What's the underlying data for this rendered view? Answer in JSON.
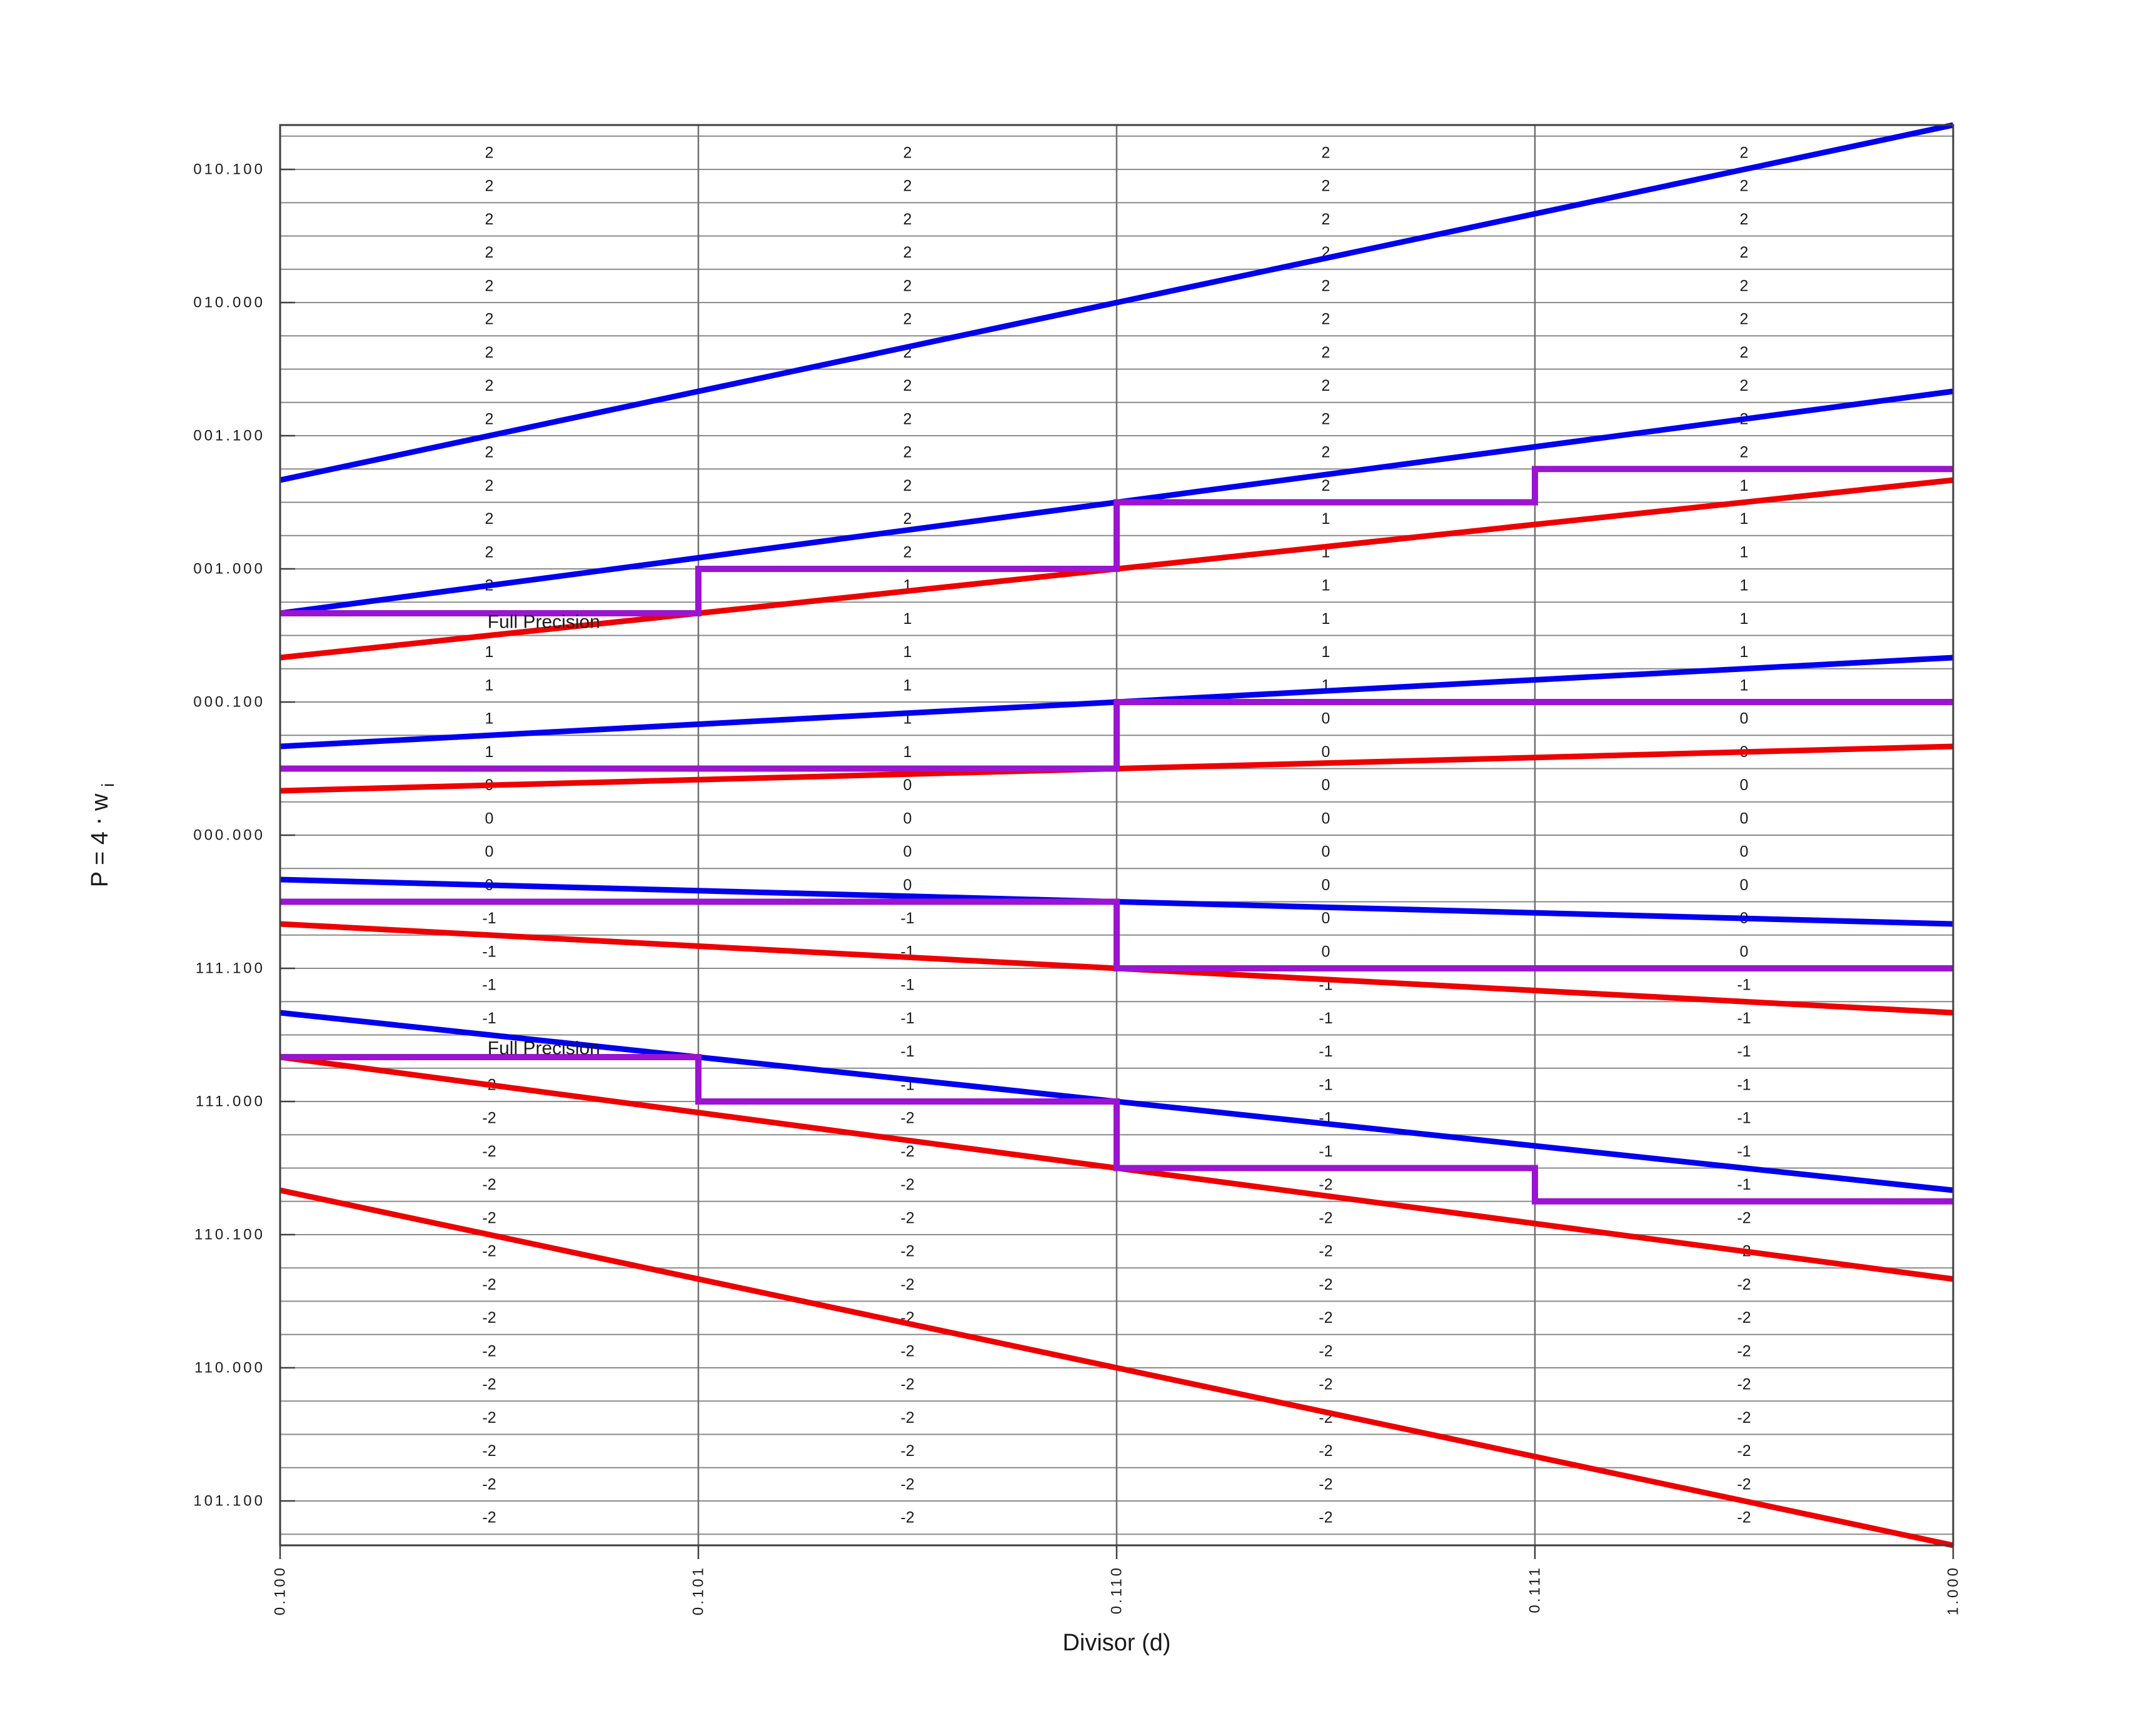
{
  "figure": {
    "xlabel": "Divisor (d)",
    "ylabel_base": "P = 4 ⋅ w",
    "ylabel_sub": "i"
  },
  "colors": {
    "blue": "#0000ee",
    "red": "#ee0000",
    "purple": "#9a14d2",
    "grid": "#8a8a8a",
    "grid_x": "#6f6f6f",
    "spine": "#3f3f3f",
    "text": "#1a1a1a"
  },
  "chart_data": {
    "type": "line",
    "title": "",
    "xlabel": "Divisor (d)",
    "ylabel": "P = 4 ⋅ w_i",
    "xlim": [
      0.5,
      1.0
    ],
    "ylim": [
      -2.6666667,
      2.6666667
    ],
    "x_ticks": [
      {
        "value": 0.5,
        "label": "0.100"
      },
      {
        "value": 0.625,
        "label": "0.101"
      },
      {
        "value": 0.75,
        "label": "0.110"
      },
      {
        "value": 0.875,
        "label": "0.111"
      },
      {
        "value": 1.0,
        "label": "1.000"
      }
    ],
    "y_ticks": [
      {
        "value": 2.5,
        "label": "010.100"
      },
      {
        "value": 2.0,
        "label": "010.000"
      },
      {
        "value": 1.5,
        "label": "001.100"
      },
      {
        "value": 1.0,
        "label": "001.000"
      },
      {
        "value": 0.5,
        "label": "000.100"
      },
      {
        "value": 0.0,
        "label": "000.000"
      },
      {
        "value": -0.5,
        "label": "111.100"
      },
      {
        "value": -1.0,
        "label": "111.000"
      },
      {
        "value": -1.5,
        "label": "110.100"
      },
      {
        "value": -2.0,
        "label": "110.000"
      },
      {
        "value": -2.5,
        "label": "101.100"
      }
    ],
    "grid": {
      "y_step": 0.125,
      "y_min": -2.625,
      "y_max": 2.625,
      "x_lines": [
        0.5,
        0.625,
        0.75,
        0.875,
        1.0
      ]
    },
    "blue_upper_bound_lines": [
      {
        "digit": 2,
        "slope": 2.6666667
      },
      {
        "digit": 1,
        "slope": 1.6666667
      },
      {
        "digit": 0,
        "slope": 0.6666667
      },
      {
        "digit": -1,
        "slope": -0.3333333
      },
      {
        "digit": -2,
        "slope": -1.3333333
      }
    ],
    "red_lower_bound_lines": [
      {
        "digit": 2,
        "slope": 1.3333333
      },
      {
        "digit": 1,
        "slope": 0.3333333
      },
      {
        "digit": 0,
        "slope": -0.6666667
      },
      {
        "digit": -1,
        "slope": -1.6666667
      },
      {
        "digit": -2,
        "slope": -2.6666667
      }
    ],
    "column_edges": [
      0.5,
      0.625,
      0.75,
      0.875,
      1.0
    ],
    "purple_staircases": [
      {
        "boundary": "2|1",
        "levels_per_column": [
          0.8333333,
          1.0,
          1.25,
          1.375
        ]
      },
      {
        "boundary": "1|0",
        "levels_per_column": [
          0.25,
          0.25,
          0.5,
          0.5
        ]
      },
      {
        "boundary": "0|-1",
        "levels_per_column": [
          -0.25,
          -0.25,
          -0.5,
          -0.5
        ]
      },
      {
        "boundary": "-1|-2",
        "levels_per_column": [
          -0.8333333,
          -1.0,
          -1.25,
          -1.375
        ]
      }
    ],
    "digit_labels": {
      "band_top_center": 2.5625,
      "band_step": 0.125,
      "band_count": 42,
      "digit_set": [
        2,
        1,
        0,
        -1,
        -2
      ],
      "suppressed_cells": [
        {
          "column": 0,
          "band_center": 0.8125
        },
        {
          "column": 0,
          "band_center": -0.8125
        }
      ]
    },
    "annotations": [
      {
        "text": "Full Precision",
        "x": 0.562,
        "y": 0.8,
        "anchor": "start"
      },
      {
        "text": "Full Precision",
        "x": 0.562,
        "y": -0.8,
        "anchor": "start"
      }
    ],
    "legend": null
  }
}
